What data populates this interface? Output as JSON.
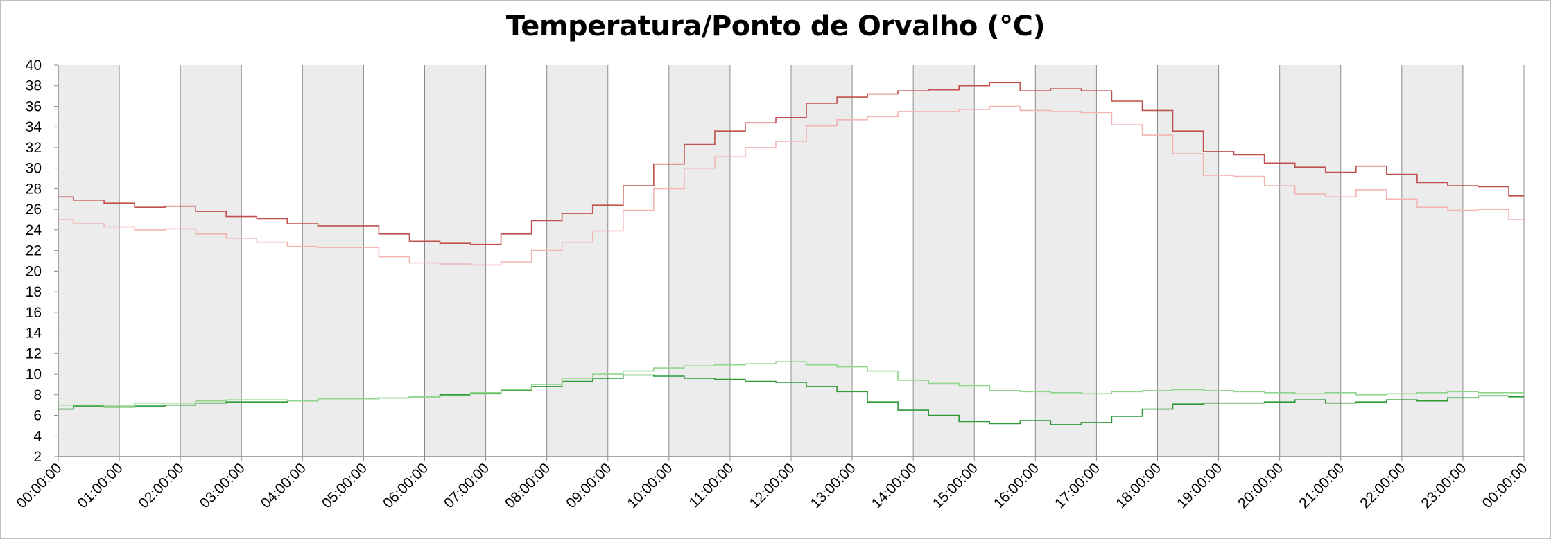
{
  "chart_data": {
    "type": "line",
    "title": "Temperatura/Ponto de Orvalho (°C)",
    "xlabel": "",
    "ylabel": "",
    "ylim": [
      2,
      40
    ],
    "yticks": [
      2,
      4,
      6,
      8,
      10,
      12,
      14,
      16,
      18,
      20,
      22,
      24,
      26,
      28,
      30,
      32,
      34,
      36,
      38,
      40
    ],
    "xticks": [
      "00:00:00",
      "01:00:00",
      "02:00:00",
      "03:00:00",
      "04:00:00",
      "05:00:00",
      "06:00:00",
      "07:00:00",
      "08:00:00",
      "09:00:00",
      "10:00:00",
      "11:00:00",
      "12:00:00",
      "13:00:00",
      "14:00:00",
      "15:00:00",
      "16:00:00",
      "17:00:00",
      "18:00:00",
      "19:00:00",
      "20:00:00",
      "21:00:00",
      "22:00:00",
      "23:00:00",
      "00:00:00"
    ],
    "x_hours": [
      0,
      0.5,
      1,
      1.5,
      2,
      2.5,
      3,
      3.5,
      4,
      4.5,
      5,
      5.5,
      6,
      6.5,
      7,
      7.5,
      8,
      8.5,
      9,
      9.5,
      10,
      10.5,
      11,
      11.5,
      12,
      12.5,
      13,
      13.5,
      14,
      14.5,
      15,
      15.5,
      16,
      16.5,
      17,
      17.5,
      18,
      18.5,
      19,
      19.5,
      20,
      20.5,
      21,
      21.5,
      22,
      22.5,
      23,
      23.5,
      24
    ],
    "series": [
      {
        "color": "#c0504d",
        "values": [
          27.2,
          26.9,
          26.6,
          26.2,
          26.3,
          25.8,
          25.3,
          25.1,
          24.6,
          24.4,
          24.4,
          23.6,
          22.9,
          22.7,
          22.6,
          23.6,
          24.9,
          25.6,
          26.4,
          28.3,
          30.4,
          32.3,
          33.6,
          34.4,
          34.9,
          36.3,
          36.9,
          37.2,
          37.5,
          37.6,
          38.0,
          38.3,
          37.5,
          37.7,
          37.5,
          36.5,
          35.6,
          33.6,
          31.6,
          31.3,
          30.5,
          30.1,
          29.6,
          30.2,
          29.4,
          28.6,
          28.3,
          28.2,
          27.3
        ]
      },
      {
        "color": "#f2b5b4",
        "values": [
          25.0,
          24.6,
          24.3,
          24.0,
          24.1,
          23.6,
          23.2,
          22.8,
          22.4,
          22.3,
          22.3,
          21.4,
          20.8,
          20.7,
          20.6,
          20.9,
          22.0,
          22.8,
          23.9,
          25.9,
          28.0,
          30.0,
          31.1,
          32.0,
          32.6,
          34.1,
          34.7,
          35.0,
          35.5,
          35.5,
          35.7,
          36.0,
          35.6,
          35.5,
          35.4,
          34.2,
          33.2,
          31.4,
          29.3,
          29.2,
          28.3,
          27.5,
          27.2,
          27.9,
          27.0,
          26.2,
          25.9,
          26.0,
          25.0
        ]
      },
      {
        "color": "#2d9a35",
        "values": [
          6.6,
          6.9,
          6.8,
          6.9,
          7.0,
          7.2,
          7.3,
          7.3,
          7.4,
          7.6,
          7.6,
          7.7,
          7.8,
          8.0,
          8.1,
          8.4,
          8.8,
          9.3,
          9.6,
          9.9,
          9.8,
          9.6,
          9.5,
          9.3,
          9.2,
          8.8,
          8.3,
          7.3,
          6.5,
          6.0,
          5.4,
          5.2,
          5.5,
          5.1,
          5.3,
          5.9,
          6.6,
          7.1,
          7.2,
          7.2,
          7.3,
          7.5,
          7.2,
          7.3,
          7.5,
          7.4,
          7.7,
          7.9,
          7.8
        ]
      },
      {
        "color": "#8fd68b",
        "values": [
          7.0,
          7.0,
          6.9,
          7.2,
          7.2,
          7.4,
          7.5,
          7.5,
          7.4,
          7.6,
          7.6,
          7.7,
          7.8,
          7.9,
          8.2,
          8.5,
          9.0,
          9.6,
          10.0,
          10.3,
          10.6,
          10.8,
          10.9,
          11.0,
          11.2,
          10.9,
          10.7,
          10.3,
          9.4,
          9.1,
          8.9,
          8.4,
          8.3,
          8.2,
          8.1,
          8.3,
          8.4,
          8.5,
          8.4,
          8.3,
          8.2,
          8.1,
          8.2,
          8.0,
          8.1,
          8.2,
          8.3,
          8.2,
          8.2
        ]
      }
    ]
  }
}
